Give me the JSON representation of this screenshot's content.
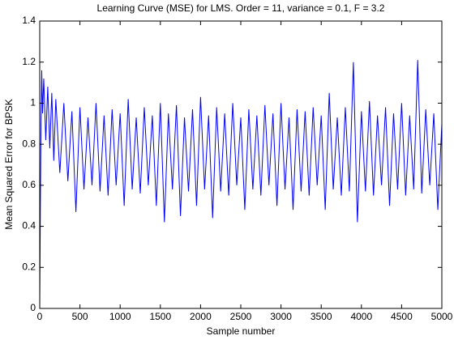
{
  "chart_data": {
    "type": "line",
    "title": "Learning Curve (MSE) for LMS. Order = 11, variance = 0.1, F = 3.2",
    "x_label": "Sample number",
    "y_label": "Mean Squared Error for BPSK",
    "x": [
      0,
      8,
      16,
      25,
      35,
      50,
      75,
      100,
      125,
      150,
      175,
      200,
      250,
      300,
      350,
      400,
      450,
      500,
      550,
      600,
      650,
      700,
      750,
      800,
      850,
      900,
      950,
      1000,
      1050,
      1100,
      1150,
      1200,
      1250,
      1300,
      1350,
      1400,
      1450,
      1500,
      1550,
      1600,
      1650,
      1700,
      1750,
      1800,
      1850,
      1900,
      1950,
      2000,
      2050,
      2100,
      2150,
      2200,
      2250,
      2300,
      2350,
      2400,
      2450,
      2500,
      2550,
      2600,
      2650,
      2700,
      2750,
      2800,
      2850,
      2900,
      2950,
      3000,
      3050,
      3100,
      3150,
      3200,
      3250,
      3300,
      3350,
      3400,
      3450,
      3500,
      3550,
      3600,
      3650,
      3700,
      3750,
      3800,
      3850,
      3900,
      3950,
      4000,
      4050,
      4100,
      4150,
      4200,
      4250,
      4300,
      4350,
      4400,
      4450,
      4500,
      4550,
      4600,
      4650,
      4700,
      4750,
      4800,
      4850,
      4900,
      4950,
      5000
    ],
    "series": [
      {
        "name": "MSE",
        "color": "#0000ff",
        "values": [
          0,
          0.5,
          0.9,
          1.16,
          0.95,
          1.12,
          0.82,
          1.08,
          0.78,
          1.05,
          0.72,
          1.02,
          0.66,
          1.0,
          0.62,
          0.96,
          0.47,
          0.98,
          0.58,
          0.93,
          0.6,
          1.0,
          0.57,
          0.94,
          0.55,
          0.97,
          0.6,
          0.95,
          0.5,
          1.02,
          0.58,
          0.93,
          0.56,
          0.98,
          0.6,
          0.94,
          0.5,
          1.0,
          0.42,
          0.95,
          0.58,
          0.99,
          0.45,
          0.93,
          0.57,
          0.97,
          0.5,
          1.03,
          0.58,
          0.94,
          0.44,
          0.98,
          0.57,
          0.95,
          0.55,
          1.0,
          0.6,
          0.93,
          0.48,
          0.97,
          0.58,
          0.94,
          0.55,
          0.99,
          0.6,
          0.95,
          0.5,
          1.0,
          0.58,
          0.93,
          0.48,
          0.97,
          0.57,
          0.96,
          0.55,
          0.98,
          0.6,
          0.94,
          0.48,
          1.05,
          0.58,
          0.93,
          0.55,
          0.98,
          0.57,
          1.2,
          0.42,
          0.96,
          0.57,
          1.01,
          0.55,
          0.94,
          0.6,
          0.98,
          0.5,
          0.95,
          0.58,
          1.0,
          0.55,
          0.94,
          0.58,
          1.21,
          0.56,
          0.97,
          0.6,
          0.95,
          0.48,
          0.9
        ]
      }
    ],
    "xlim": [
      0,
      5000
    ],
    "xticks": [
      0,
      500,
      1000,
      1500,
      2000,
      2500,
      3000,
      3500,
      4000,
      4500,
      5000
    ],
    "ylim": [
      0,
      1.4
    ],
    "yticks": [
      0,
      0.2,
      0.4,
      0.6,
      0.8,
      1,
      1.2,
      1.4
    ],
    "grid": false
  }
}
